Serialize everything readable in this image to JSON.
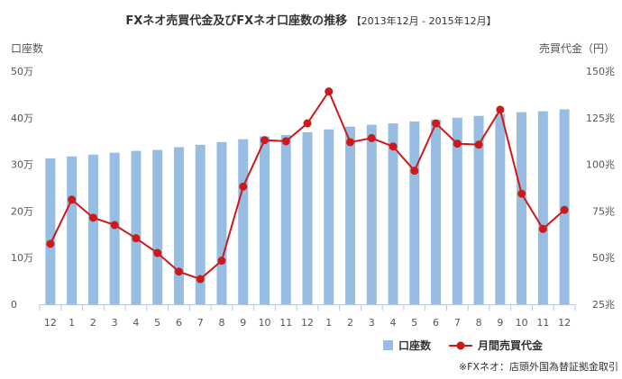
{
  "chart_data": {
    "type": "bar+line",
    "title": "FXネオ売買代金及びFXネオ口座数の推移",
    "subtitle": "【2013年12月 - 2015年12月】",
    "left_axis": {
      "label": "口座数",
      "range": [
        0,
        50
      ],
      "ticks": [
        "0",
        "10万",
        "20万",
        "30万",
        "40万",
        "50万"
      ]
    },
    "right_axis": {
      "label": "売買代金（円）",
      "range": [
        25,
        150
      ],
      "ticks": [
        "25兆",
        "50兆",
        "75兆",
        "100兆",
        "125兆",
        "150兆"
      ]
    },
    "categories": [
      "12",
      "1",
      "2",
      "3",
      "4",
      "5",
      "6",
      "7",
      "8",
      "9",
      "10",
      "11",
      "12",
      "1",
      "2",
      "3",
      "4",
      "5",
      "6",
      "7",
      "8",
      "9",
      "10",
      "11",
      "12"
    ],
    "series": [
      {
        "name": "口座数",
        "type": "bar",
        "axis": "left",
        "color": "#97bde3",
        "unit": "万",
        "values": [
          31.3,
          31.7,
          32.1,
          32.5,
          32.9,
          33.1,
          33.7,
          34.2,
          34.8,
          35.4,
          36.0,
          36.3,
          36.9,
          37.5,
          38.1,
          38.5,
          38.8,
          39.2,
          39.6,
          40.0,
          40.4,
          40.8,
          41.2,
          41.4,
          41.8
        ]
      },
      {
        "name": "月間売買代金",
        "type": "line",
        "axis": "right",
        "color": "#cc1a1a",
        "unit": "兆",
        "values": [
          57.4,
          81.1,
          71.4,
          67.5,
          60.4,
          52.5,
          42.5,
          38.5,
          48.4,
          88.1,
          113.0,
          112.4,
          122.0,
          139.1,
          111.9,
          114.1,
          109.6,
          96.6,
          122.0,
          111.1,
          110.6,
          129.3,
          84.3,
          65.4,
          75.6
        ]
      }
    ],
    "grid": false,
    "legend": "bottom-right"
  },
  "footnote": "※FXネオ：店頭外国為替証拠金取引"
}
